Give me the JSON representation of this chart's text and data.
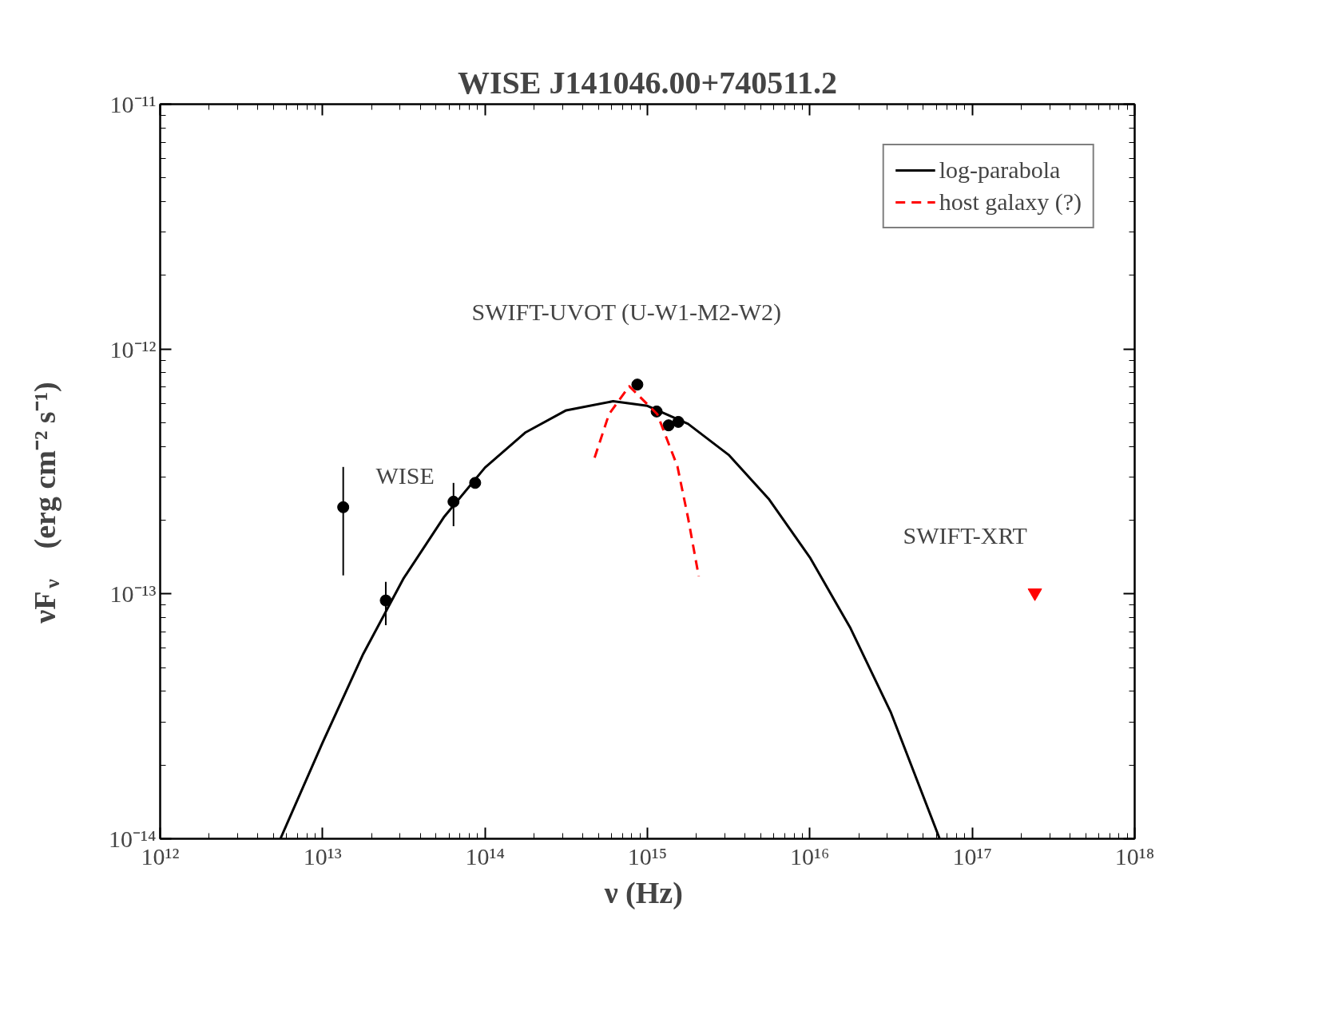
{
  "chart_data": {
    "type": "scatter",
    "title": "WISE J141046.00+740511.2",
    "xlabel": "ν  (Hz)",
    "ylabel": "νF$_{ν}$   (erg cm⁻² s⁻¹)",
    "log": "xy",
    "xlim": [
      1000000000000.0,
      1e+18
    ],
    "ylim": [
      1e-14,
      1e-11
    ],
    "xticks": [
      {
        "value": 1000000000000.0,
        "label": "10¹²"
      },
      {
        "value": 10000000000000.0,
        "label": "10¹³"
      },
      {
        "value": 100000000000000.0,
        "label": "10¹⁴"
      },
      {
        "value": 1000000000000000.0,
        "label": "10¹⁵"
      },
      {
        "value": 1e+16,
        "label": "10¹⁶"
      },
      {
        "value": 1e+17,
        "label": "10¹⁷"
      },
      {
        "value": 1e+18,
        "label": "10¹⁸"
      }
    ],
    "yticks": [
      {
        "value": 1e-14,
        "label": "10⁻¹⁴"
      },
      {
        "value": 1e-13,
        "label": "10⁻¹³"
      },
      {
        "value": 1e-12,
        "label": "10⁻¹²"
      },
      {
        "value": 1e-11,
        "label": "10⁻¹¹"
      }
    ],
    "grid": false,
    "legend": "top right",
    "series": [
      {
        "color": "#000000",
        "marker": "circle",
        "x": [
          13400000000000.0,
          24500000000000.0,
          64000000000000.0,
          87000000000000.0,
          867000000000000.0,
          1140000000000000.0,
          1350000000000000.0,
          1550000000000000.0
        ],
        "values": [
          2.26e-13,
          9.4e-14,
          2.38e-13,
          2.84e-13,
          7.16e-13,
          5.56e-13,
          4.88e-13,
          5.04e-13
        ],
        "errors": [
          [
            1.19e-13,
            3.3e-13
          ],
          [
            7.45e-14,
            1.12e-13
          ],
          [
            1.89e-13,
            2.84e-13
          ],
          null,
          null,
          null,
          null,
          null
        ]
      },
      {
        "color": "#ff0000",
        "marker": "triangle",
        "x": [
          2.43e+17
        ],
        "values": [
          1.01e-13
        ]
      },
      {
        "type": "line",
        "name": "log-parabola",
        "color": "#000000",
        "line_style": "solid",
        "x": [
          5500000000000.0,
          10000000000000.0,
          17800000000000.0,
          31600000000000.0,
          56200000000000.0,
          100000000000000.0,
          178000000000000.0,
          316000000000000.0,
          615000000000000.0,
          1000000000000000.0,
          1780000000000000.0,
          3160000000000000.0,
          5620000000000000.0,
          1e+16,
          1.78e+16,
          3.16e+16,
          6.3e+16
        ],
        "values": [
          1e-14,
          2.47e-14,
          5.69e-14,
          1.16e-13,
          2.07e-13,
          3.28e-13,
          4.57e-13,
          5.62e-13,
          6.12e-13,
          5.86e-13,
          4.95e-13,
          3.7e-13,
          2.43e-13,
          1.41e-13,
          7.24e-14,
          3.27e-14,
          1e-14
        ]
      },
      {
        "type": "line",
        "name": "host galaxy (?)",
        "color": "#ff0000",
        "line_style": "dashed",
        "x": [
          473000000000000.0,
          580000000000000.0,
          773000000000000.0,
          1150000000000000.0,
          1530000000000000.0,
          1780000000000000.0,
          2070000000000000.0
        ],
        "values": [
          3.6e-13,
          5.42e-13,
          7.05e-13,
          5.42e-13,
          3.32e-13,
          2.04e-13,
          1.18e-13
        ]
      }
    ],
    "annotations": [
      "WISE",
      "SWIFT-UVOT (U-W1-M2-W2)",
      "SWIFT-XRT"
    ]
  }
}
